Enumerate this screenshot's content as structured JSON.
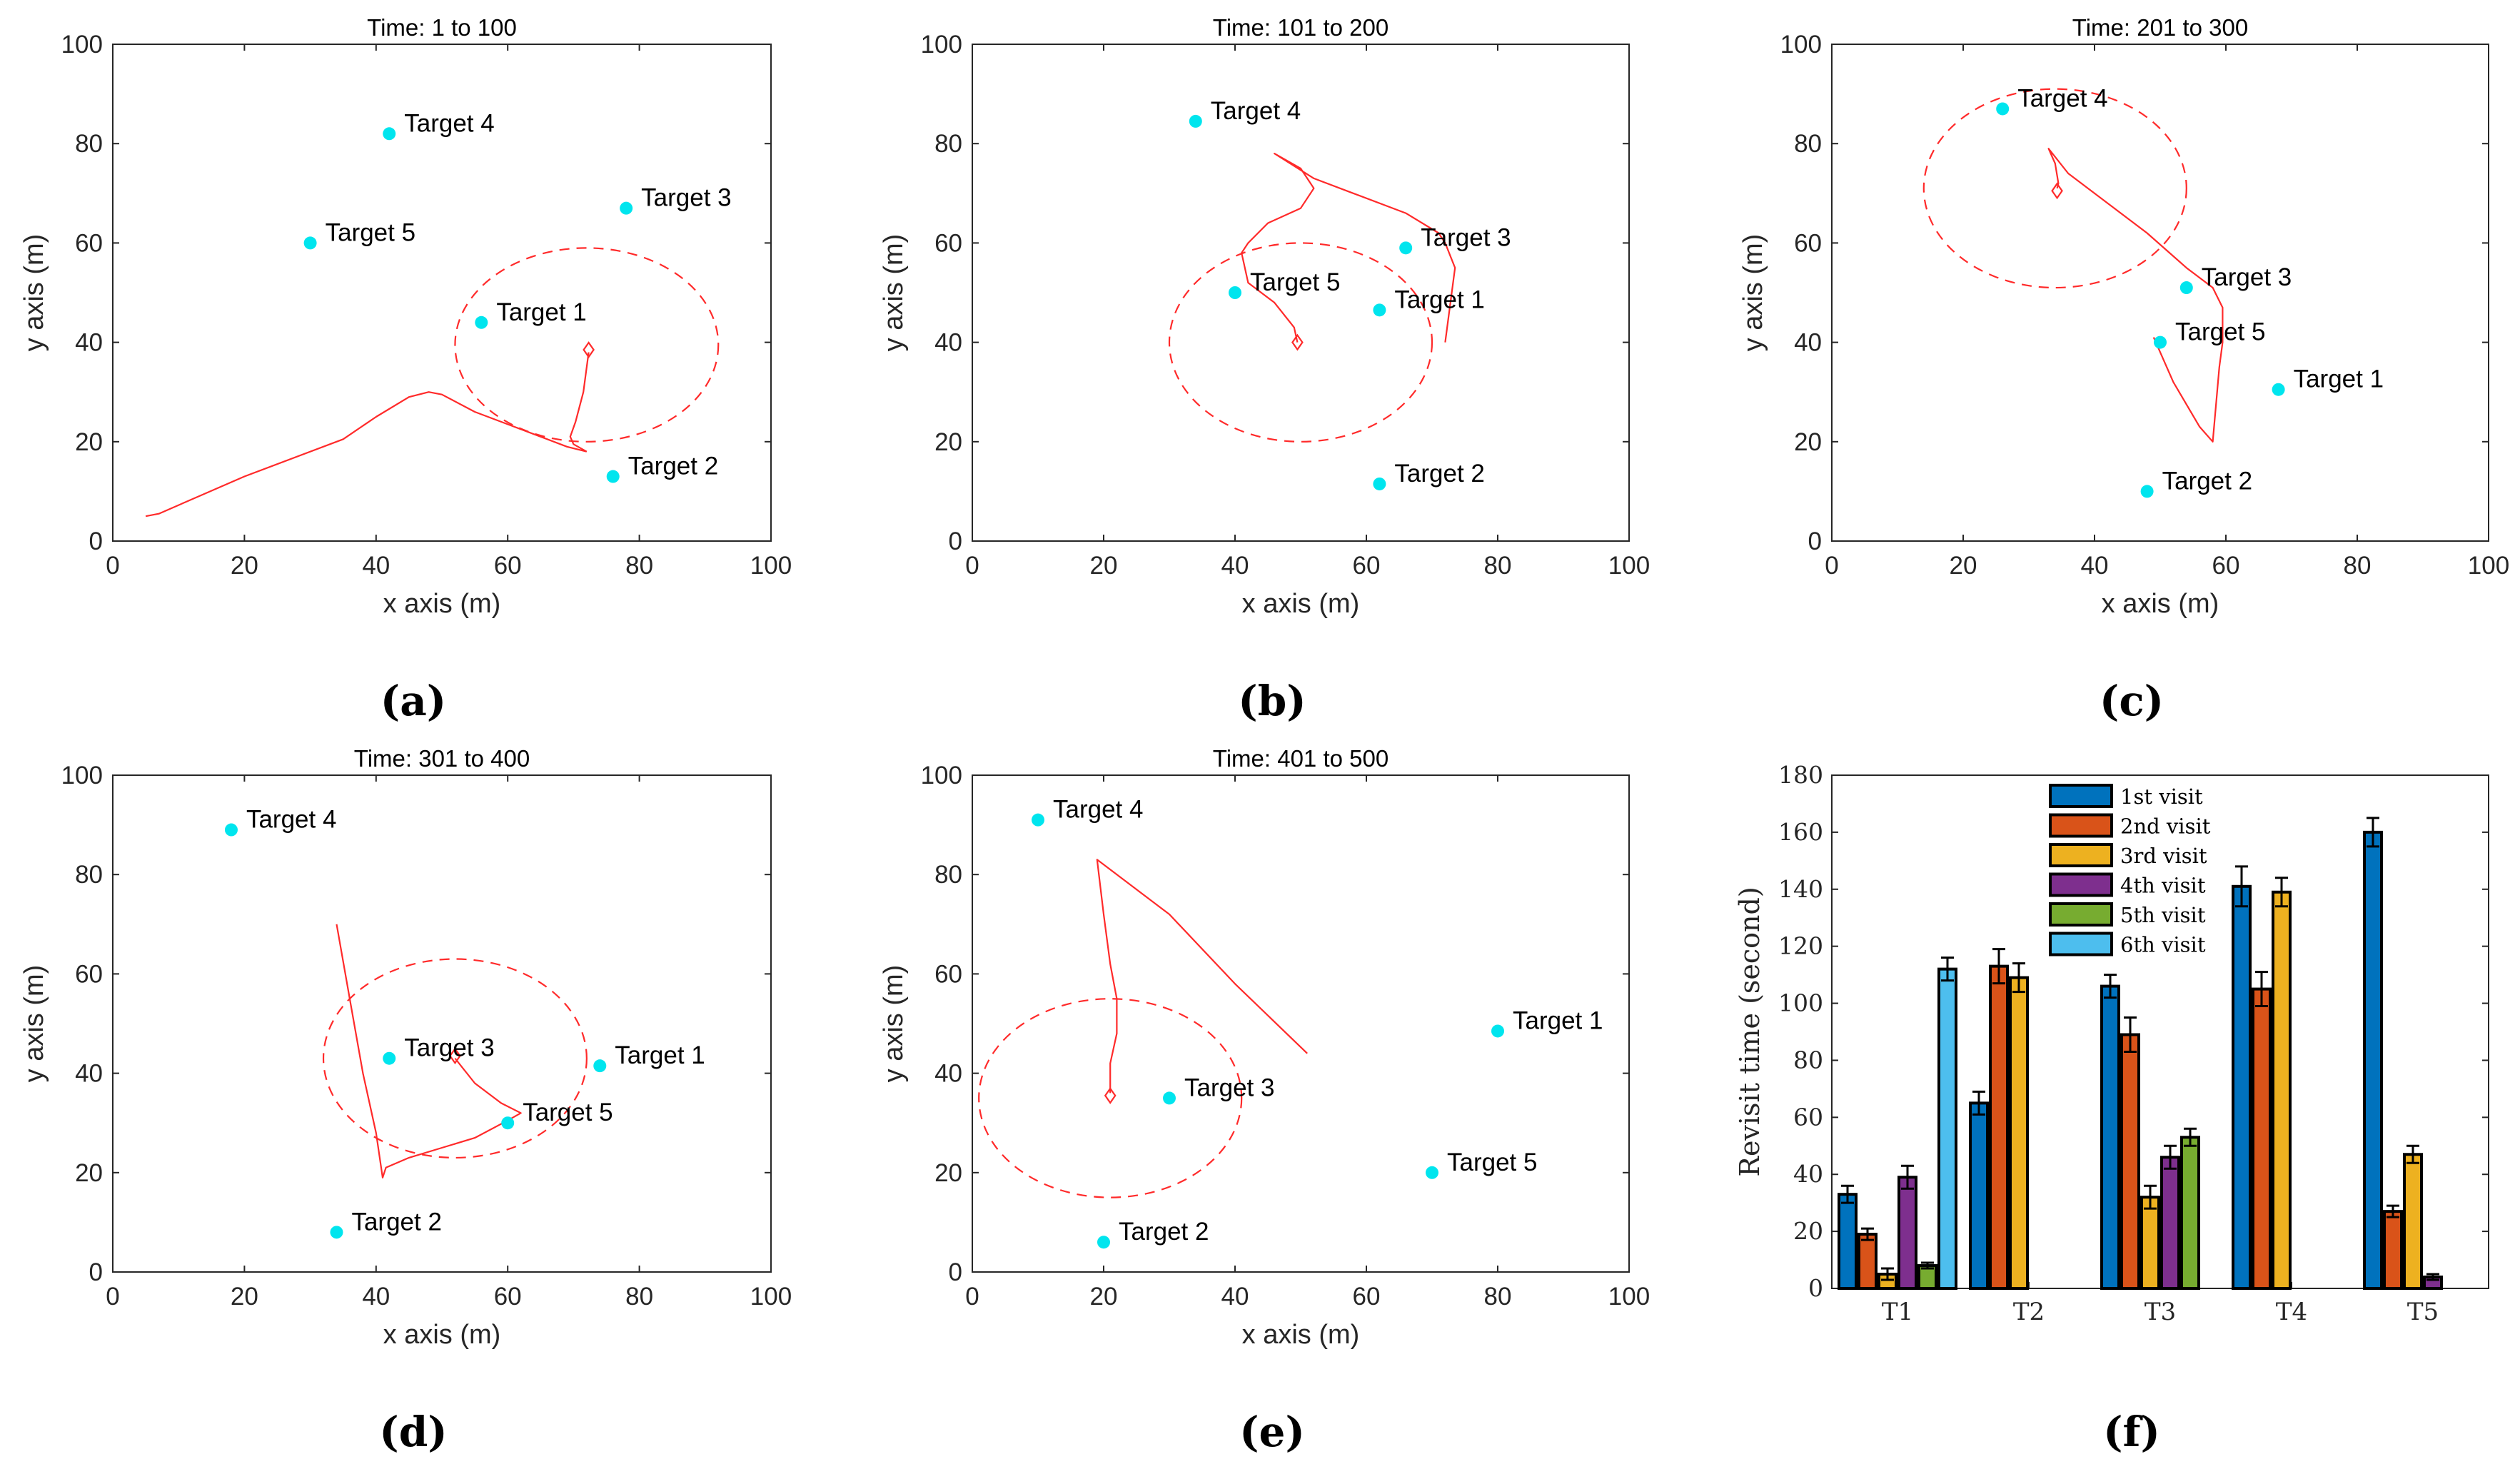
{
  "chart_data": [
    {
      "type": "scatter",
      "panel_label": "(a)",
      "title": "Time: 1 to 100",
      "xlabel": "x axis (m)",
      "ylabel": "y axis (m)",
      "xlim": [
        0,
        100
      ],
      "ylim": [
        0,
        100
      ],
      "xticks": [
        "0",
        "20",
        "40",
        "60",
        "80",
        "100"
      ],
      "yticks": [
        "0",
        "20",
        "40",
        "60",
        "80",
        "100"
      ],
      "grid": false,
      "colors": {
        "targets": "#00e5ee",
        "path": "#ff2a2a"
      },
      "targets": [
        {
          "name": "Target 1",
          "x": 56,
          "y": 44
        },
        {
          "name": "Target 2",
          "x": 76,
          "y": 13
        },
        {
          "name": "Target 3",
          "x": 78,
          "y": 67
        },
        {
          "name": "Target 4",
          "x": 42,
          "y": 82
        },
        {
          "name": "Target 5",
          "x": 30,
          "y": 60
        }
      ],
      "trajectory": [
        [
          5,
          5
        ],
        [
          7,
          5.5
        ],
        [
          20,
          13
        ],
        [
          35,
          20.5
        ],
        [
          40,
          25
        ],
        [
          45,
          29
        ],
        [
          48,
          30
        ],
        [
          50,
          29.5
        ],
        [
          55,
          26
        ],
        [
          60,
          23.5
        ],
        [
          65,
          21
        ],
        [
          69,
          19
        ],
        [
          72,
          18
        ]
      ],
      "trajectory2": [
        [
          72,
          18
        ],
        [
          70,
          19.5
        ],
        [
          69.5,
          21
        ],
        [
          70.3,
          24
        ],
        [
          71.5,
          30
        ],
        [
          72.3,
          38
        ]
      ],
      "agent": {
        "x": 72.3,
        "y": 38.5
      },
      "sensing_circle": {
        "cx": 72,
        "cy": 39.5,
        "rx": 20,
        "ry": 19.5
      }
    },
    {
      "type": "scatter",
      "panel_label": "(b)",
      "title": "Time: 101 to 200",
      "xlabel": "x axis (m)",
      "ylabel": "y axis (m)",
      "xlim": [
        0,
        100
      ],
      "ylim": [
        0,
        100
      ],
      "xticks": [
        "0",
        "20",
        "40",
        "60",
        "80",
        "100"
      ],
      "yticks": [
        "0",
        "20",
        "40",
        "60",
        "80",
        "100"
      ],
      "grid": false,
      "colors": {
        "targets": "#00e5ee",
        "path": "#ff2a2a"
      },
      "targets": [
        {
          "name": "Target 1",
          "x": 62,
          "y": 46.5
        },
        {
          "name": "Target 2",
          "x": 62,
          "y": 11.5
        },
        {
          "name": "Target 3",
          "x": 66,
          "y": 59
        },
        {
          "name": "Target 4",
          "x": 34,
          "y": 84.5
        },
        {
          "name": "Target 5",
          "x": 40,
          "y": 50
        }
      ],
      "trajectory": [
        [
          72,
          40
        ],
        [
          72.5,
          45
        ],
        [
          73,
          50
        ],
        [
          73.5,
          55
        ],
        [
          72,
          60
        ],
        [
          71,
          62
        ],
        [
          66,
          66
        ],
        [
          58,
          70
        ],
        [
          52,
          73
        ],
        [
          46,
          78
        ],
        [
          50,
          75
        ],
        [
          52,
          71
        ],
        [
          50,
          67
        ],
        [
          45,
          64
        ],
        [
          42,
          60
        ],
        [
          41,
          58
        ],
        [
          42,
          52
        ],
        [
          46,
          48
        ],
        [
          49,
          43
        ],
        [
          49.5,
          40
        ]
      ],
      "trajectory2": [],
      "agent": {
        "x": 49.5,
        "y": 40
      },
      "sensing_circle": {
        "cx": 50,
        "cy": 40,
        "rx": 20,
        "ry": 20
      }
    },
    {
      "type": "scatter",
      "panel_label": "(c)",
      "title": "Time: 201 to 300",
      "xlabel": "x axis (m)",
      "ylabel": "y axis (m)",
      "xlim": [
        0,
        100
      ],
      "ylim": [
        0,
        100
      ],
      "xticks": [
        "0",
        "20",
        "40",
        "60",
        "80",
        "100"
      ],
      "yticks": [
        "0",
        "20",
        "40",
        "60",
        "80",
        "100"
      ],
      "grid": false,
      "colors": {
        "targets": "#00e5ee",
        "path": "#ff2a2a"
      },
      "targets": [
        {
          "name": "Target 1",
          "x": 68,
          "y": 30.5
        },
        {
          "name": "Target 2",
          "x": 48,
          "y": 10
        },
        {
          "name": "Target 3",
          "x": 54,
          "y": 51
        },
        {
          "name": "Target 4",
          "x": 26,
          "y": 87
        },
        {
          "name": "Target 5",
          "x": 50,
          "y": 40
        }
      ],
      "trajectory": [
        [
          49,
          41
        ],
        [
          52,
          32
        ],
        [
          56,
          23
        ],
        [
          58,
          20
        ],
        [
          59,
          35
        ],
        [
          59.5,
          40
        ],
        [
          59.5,
          47
        ],
        [
          58,
          51
        ],
        [
          54,
          55
        ],
        [
          48,
          62
        ],
        [
          42,
          68
        ],
        [
          36,
          74
        ],
        [
          33,
          79
        ],
        [
          34,
          76
        ],
        [
          34.5,
          72
        ],
        [
          34.3,
          71
        ]
      ],
      "trajectory2": [],
      "agent": {
        "x": 34.3,
        "y": 70.5
      },
      "sensing_circle": {
        "cx": 34,
        "cy": 71,
        "rx": 20,
        "ry": 20
      }
    },
    {
      "type": "scatter",
      "panel_label": "(d)",
      "title": "Time: 301 to 400",
      "xlabel": "x axis (m)",
      "ylabel": "y axis (m)",
      "xlim": [
        0,
        100
      ],
      "ylim": [
        0,
        100
      ],
      "xticks": [
        "0",
        "20",
        "40",
        "60",
        "80",
        "100"
      ],
      "yticks": [
        "0",
        "20",
        "40",
        "60",
        "80",
        "100"
      ],
      "grid": false,
      "colors": {
        "targets": "#00e5ee",
        "path": "#ff2a2a"
      },
      "targets": [
        {
          "name": "Target 1",
          "x": 74,
          "y": 41.5
        },
        {
          "name": "Target 2",
          "x": 34,
          "y": 8
        },
        {
          "name": "Target 3",
          "x": 42,
          "y": 43
        },
        {
          "name": "Target 4",
          "x": 18,
          "y": 89
        },
        {
          "name": "Target 5",
          "x": 60,
          "y": 30
        }
      ],
      "trajectory": [
        [
          34,
          70
        ],
        [
          36,
          55
        ],
        [
          38,
          40
        ],
        [
          40,
          28
        ],
        [
          41,
          19
        ],
        [
          41.5,
          21
        ],
        [
          45,
          23
        ],
        [
          50,
          25
        ],
        [
          55,
          27
        ],
        [
          60,
          30.5
        ],
        [
          62,
          32
        ],
        [
          59,
          34
        ],
        [
          55,
          38
        ],
        [
          52,
          43
        ]
      ],
      "trajectory2": [],
      "agent": {
        "x": 52,
        "y": 43.5
      },
      "sensing_circle": {
        "cx": 52,
        "cy": 43,
        "rx": 20,
        "ry": 20
      }
    },
    {
      "type": "scatter",
      "panel_label": "(e)",
      "title": "Time: 401 to 500",
      "xlabel": "x axis (m)",
      "ylabel": "y axis (m)",
      "xlim": [
        0,
        100
      ],
      "ylim": [
        0,
        100
      ],
      "xticks": [
        "0",
        "20",
        "40",
        "60",
        "80",
        "100"
      ],
      "yticks": [
        "0",
        "20",
        "40",
        "60",
        "80",
        "100"
      ],
      "grid": false,
      "colors": {
        "targets": "#00e5ee",
        "path": "#ff2a2a"
      },
      "targets": [
        {
          "name": "Target 1",
          "x": 80,
          "y": 48.5
        },
        {
          "name": "Target 2",
          "x": 20,
          "y": 6
        },
        {
          "name": "Target 3",
          "x": 30,
          "y": 35
        },
        {
          "name": "Target 4",
          "x": 10,
          "y": 91
        },
        {
          "name": "Target 5",
          "x": 70,
          "y": 20
        }
      ],
      "trajectory": [
        [
          51,
          44
        ],
        [
          40,
          58
        ],
        [
          30,
          72
        ],
        [
          19,
          83
        ],
        [
          20,
          72
        ],
        [
          21,
          62
        ],
        [
          22,
          55
        ],
        [
          22,
          48
        ],
        [
          21,
          42
        ],
        [
          21,
          36
        ]
      ],
      "trajectory2": [],
      "agent": {
        "x": 21,
        "y": 35.5
      },
      "sensing_circle": {
        "cx": 21,
        "cy": 35,
        "rx": 20,
        "ry": 20
      }
    },
    {
      "type": "bar",
      "panel_label": "(f)",
      "title": "",
      "xlabel": "",
      "ylabel": "Revisit time (second)",
      "ylim": [
        0,
        180
      ],
      "yticks": [
        "0",
        "20",
        "40",
        "60",
        "80",
        "100",
        "120",
        "140",
        "160",
        "180"
      ],
      "categories": [
        "T1",
        "T2",
        "T3",
        "T4",
        "T5"
      ],
      "legend_position": "top-left",
      "series": [
        {
          "name": "1st visit",
          "color": "#0072bd",
          "values": [
            33,
            65,
            106,
            141,
            160
          ],
          "errors": [
            3,
            4,
            4,
            7,
            5
          ]
        },
        {
          "name": "2nd visit",
          "color": "#d95319",
          "values": [
            19,
            113,
            89,
            105,
            27
          ],
          "errors": [
            2,
            6,
            6,
            6,
            2
          ]
        },
        {
          "name": "3rd visit",
          "color": "#edb120",
          "values": [
            5,
            109,
            32,
            139,
            47
          ],
          "errors": [
            2,
            5,
            4,
            5,
            3
          ]
        },
        {
          "name": "4th visit",
          "color": "#7e2f8e",
          "values": [
            39,
            null,
            46,
            null,
            4
          ],
          "errors": [
            4,
            null,
            4,
            null,
            1
          ]
        },
        {
          "name": "5th visit",
          "color": "#77ac30",
          "values": [
            8,
            null,
            53,
            null,
            null
          ],
          "errors": [
            1,
            null,
            3,
            null,
            null
          ]
        },
        {
          "name": "6th visit",
          "color": "#4dbeee",
          "values": [
            112,
            null,
            null,
            null,
            null
          ],
          "errors": [
            4,
            null,
            null,
            null,
            null
          ]
        }
      ]
    }
  ]
}
